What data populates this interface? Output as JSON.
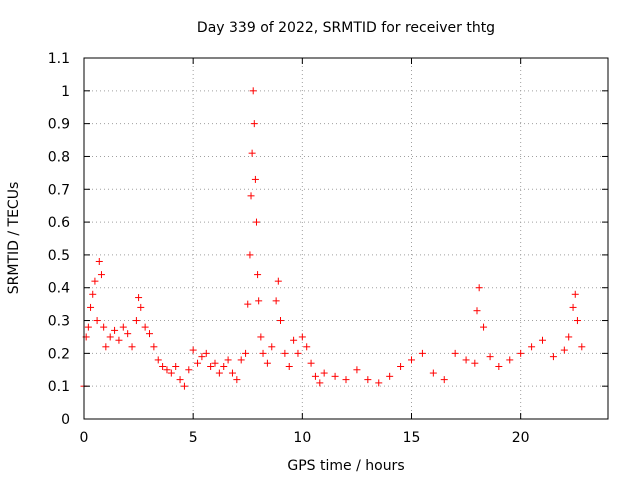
{
  "chart_data": {
    "type": "scatter",
    "title": "Day 339 of 2022, SRMTID for receiver thtg",
    "xlabel": "GPS time / hours",
    "ylabel": "SRMTID / TECUs",
    "xlim": [
      0,
      24
    ],
    "ylim": [
      0,
      1.1
    ],
    "x_ticks": [
      0,
      5,
      10,
      15,
      20
    ],
    "x_tick_labels": [
      "0",
      "5",
      "10",
      "15",
      "20"
    ],
    "y_ticks": [
      0,
      0.1,
      0.2,
      0.3,
      0.4,
      0.5,
      0.6,
      0.7,
      0.8,
      0.9,
      1,
      1.1
    ],
    "y_tick_labels": [
      "0",
      "0.1",
      "0.2",
      "0.3",
      "0.4",
      "0.5",
      "0.6",
      "0.7",
      "0.8",
      "0.9",
      "1",
      "1.1"
    ],
    "grid": true,
    "marker": "plus",
    "marker_color": "#ff0000",
    "series": [
      {
        "name": "SRMTID",
        "x": [
          0.0,
          0.1,
          0.2,
          0.3,
          0.4,
          0.5,
          0.6,
          0.7,
          0.8,
          0.9,
          1.0,
          1.2,
          1.4,
          1.6,
          1.8,
          2.0,
          2.2,
          2.4,
          2.5,
          2.6,
          2.8,
          3.0,
          3.2,
          3.4,
          3.6,
          3.8,
          4.0,
          4.2,
          4.4,
          4.6,
          4.8,
          5.0,
          5.2,
          5.4,
          5.6,
          5.8,
          6.0,
          6.2,
          6.4,
          6.6,
          6.8,
          7.0,
          7.2,
          7.4,
          7.5,
          7.6,
          7.65,
          7.7,
          7.75,
          7.8,
          7.85,
          7.9,
          7.95,
          8.0,
          8.1,
          8.2,
          8.4,
          8.6,
          8.8,
          8.9,
          9.0,
          9.2,
          9.4,
          9.6,
          9.8,
          10.0,
          10.2,
          10.4,
          10.6,
          10.8,
          11.0,
          11.5,
          12.0,
          12.5,
          13.0,
          13.5,
          14.0,
          14.5,
          15.0,
          15.5,
          16.0,
          16.5,
          17.0,
          17.5,
          17.9,
          18.0,
          18.1,
          18.3,
          18.6,
          19.0,
          19.5,
          20.0,
          20.5,
          21.0,
          21.5,
          22.0,
          22.2,
          22.4,
          22.5,
          22.6,
          22.8
        ],
        "y": [
          0.1,
          0.25,
          0.28,
          0.34,
          0.38,
          0.42,
          0.3,
          0.48,
          0.44,
          0.28,
          0.22,
          0.25,
          0.27,
          0.24,
          0.28,
          0.26,
          0.22,
          0.3,
          0.37,
          0.34,
          0.28,
          0.26,
          0.22,
          0.18,
          0.16,
          0.15,
          0.14,
          0.16,
          0.12,
          0.1,
          0.15,
          0.21,
          0.17,
          0.19,
          0.2,
          0.16,
          0.17,
          0.14,
          0.16,
          0.18,
          0.14,
          0.12,
          0.18,
          0.2,
          0.35,
          0.5,
          0.68,
          0.81,
          1.0,
          0.9,
          0.73,
          0.6,
          0.44,
          0.36,
          0.25,
          0.2,
          0.17,
          0.22,
          0.36,
          0.42,
          0.3,
          0.2,
          0.16,
          0.24,
          0.2,
          0.25,
          0.22,
          0.17,
          0.13,
          0.11,
          0.14,
          0.13,
          0.12,
          0.15,
          0.12,
          0.11,
          0.13,
          0.16,
          0.18,
          0.2,
          0.14,
          0.12,
          0.2,
          0.18,
          0.17,
          0.33,
          0.4,
          0.28,
          0.19,
          0.16,
          0.18,
          0.2,
          0.22,
          0.24,
          0.19,
          0.21,
          0.25,
          0.34,
          0.38,
          0.3,
          0.22
        ]
      }
    ]
  }
}
